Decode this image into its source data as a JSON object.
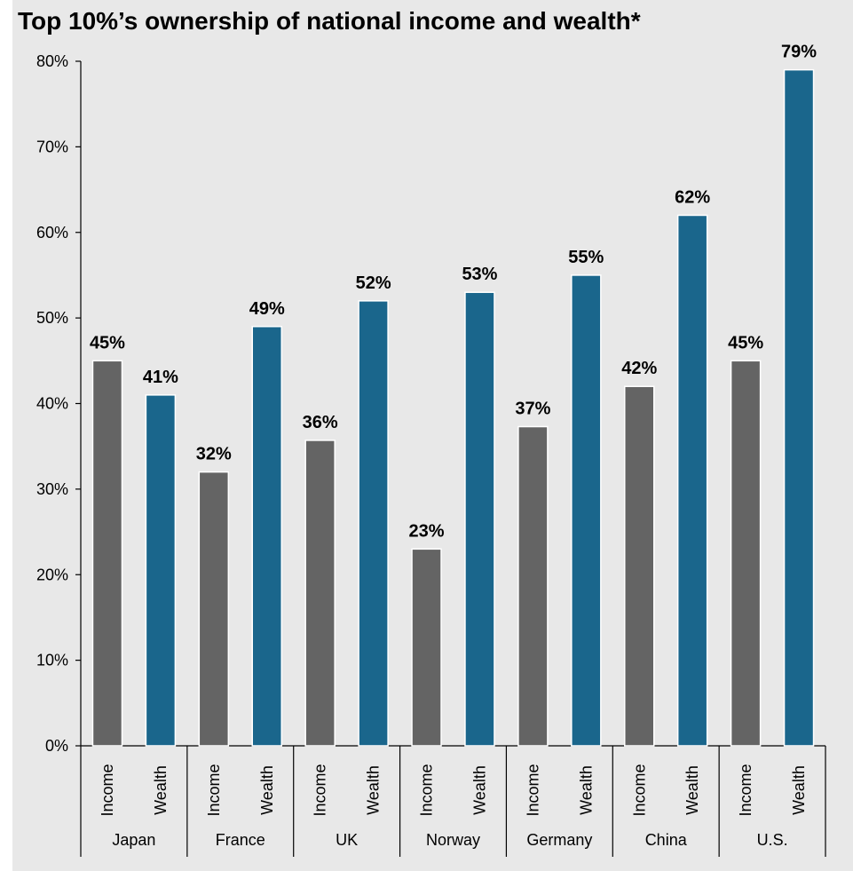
{
  "chart_data": {
    "type": "bar",
    "title": "Top 10%’s ownership of national income and wealth*",
    "ylim": [
      0,
      80
    ],
    "yticks": [
      "0%",
      "10%",
      "20%",
      "30%",
      "40%",
      "50%",
      "60%",
      "70%",
      "80%"
    ],
    "grid": false,
    "countries": [
      "Japan",
      "France",
      "UK",
      "Norway",
      "Germany",
      "China",
      "U.S."
    ],
    "measures": [
      "Income",
      "Wealth"
    ],
    "colors": {
      "Income": "#646464",
      "Wealth": "#1a668c"
    },
    "series": [
      {
        "name": "Income",
        "values": [
          45,
          32,
          35.7,
          23,
          37.3,
          42,
          45
        ],
        "labels": [
          "45%",
          "32%",
          "36%",
          "23%",
          "37%",
          "42%",
          "45%"
        ]
      },
      {
        "name": "Wealth",
        "values": [
          41,
          49,
          52,
          53,
          55,
          62,
          79
        ],
        "labels": [
          "41%",
          "49%",
          "52%",
          "53%",
          "55%",
          "62%",
          "79%"
        ]
      }
    ]
  }
}
